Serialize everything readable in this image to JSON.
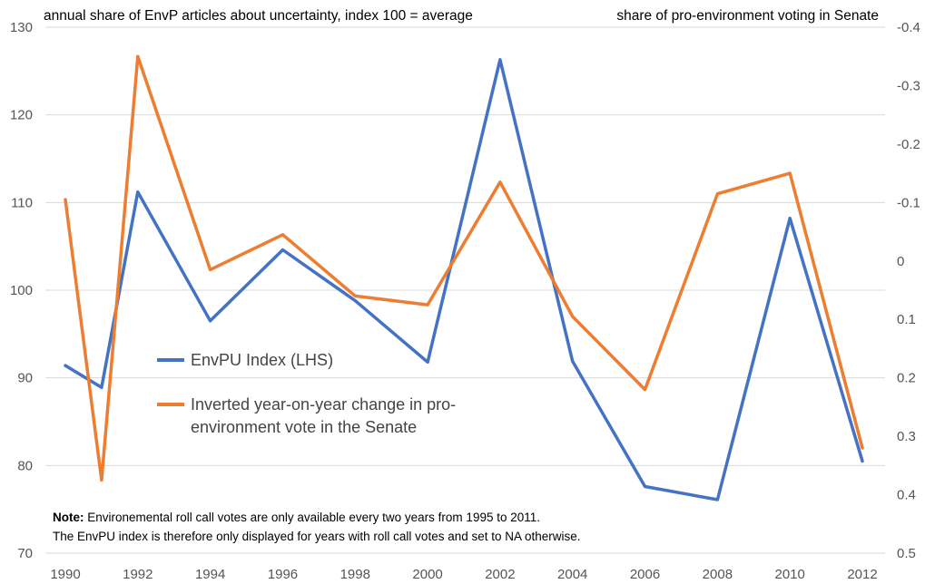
{
  "chart_data": {
    "type": "line",
    "left_axis_title": "annual share of EnvP articles about uncertainty, index 100 = average",
    "right_axis_title": "share of pro-environment voting in Senate",
    "x_ticks": [
      "1990",
      "1992",
      "1994",
      "1996",
      "1998",
      "2000",
      "2002",
      "2004",
      "2006",
      "2008",
      "2010",
      "2012"
    ],
    "ylim_left": [
      70,
      130
    ],
    "y_ticks_left": [
      "70",
      "80",
      "90",
      "100",
      "110",
      "120",
      "130"
    ],
    "ylim_right": [
      0.5,
      -0.4
    ],
    "y_ticks_right": [
      "0.5",
      "0.4",
      "0.3",
      "0.2",
      "0.1",
      "0",
      "-0.1",
      "-0.2",
      "-0.3",
      "-0.4"
    ],
    "grid": true,
    "legend_placement": "center-left",
    "series": [
      {
        "name": "EnvPU Index (LHS)",
        "axis": "left",
        "color": "#4472C4",
        "x": [
          1990,
          1991,
          1992,
          1994,
          1996,
          1998,
          2000,
          2002,
          2004,
          2006,
          2008,
          2010,
          2012
        ],
        "values": [
          91.4,
          88.9,
          111.2,
          96.5,
          104.6,
          98.8,
          91.8,
          126.3,
          91.9,
          77.6,
          76.1,
          108.2,
          80.5
        ]
      },
      {
        "name": "Inverted year-on-year change in pro-environment vote in the Senate",
        "axis": "right",
        "color": "#ED7D31",
        "x": [
          1990,
          1991,
          1992,
          1994,
          1996,
          1998,
          2000,
          2002,
          2004,
          2006,
          2008,
          2010,
          2012
        ],
        "values": [
          -0.105,
          0.375,
          -0.35,
          0.015,
          -0.045,
          0.06,
          0.075,
          -0.135,
          0.095,
          0.22,
          -0.115,
          -0.15,
          0.32
        ]
      }
    ],
    "note_label": "Note:",
    "note_line1": " Environemental roll call votes are only available every two years from 1995 to 2011.",
    "note_line2": "The EnvPU index is therefore only displayed for years with roll call votes and set to NA otherwise."
  }
}
